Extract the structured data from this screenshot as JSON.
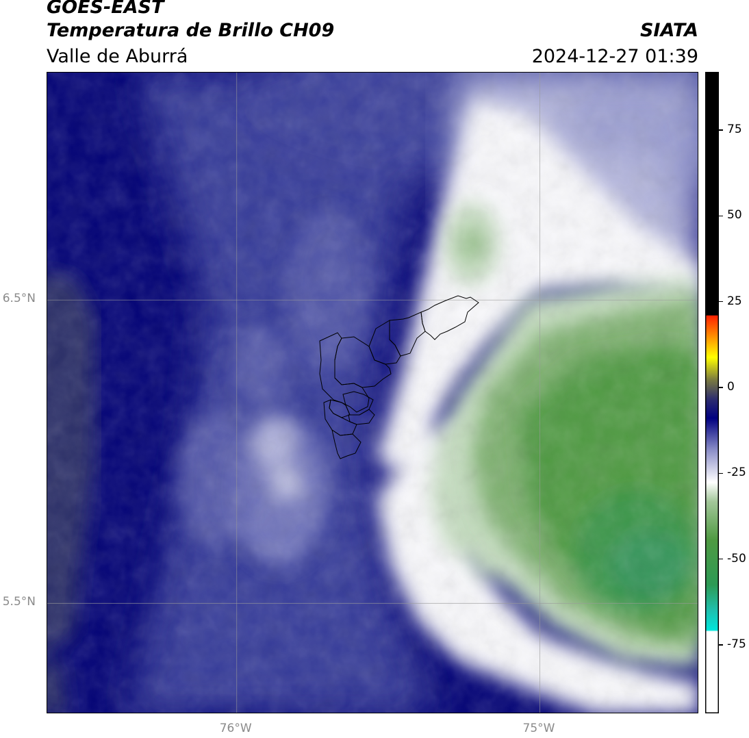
{
  "header": {
    "satellite": "GOES-EAST",
    "product": "Temperatura de Brillo CH09",
    "region": "Valle de Aburrá",
    "agency": "SIATA",
    "datetime": "2024-12-27 01:39"
  },
  "map": {
    "lon_range": [
      -76.625,
      -74.475
    ],
    "lat_range": [
      5.135,
      7.25
    ],
    "lon_ticks": [
      {
        "value": -76,
        "label": "76°W"
      },
      {
        "value": -75,
        "label": "75°W"
      }
    ],
    "lat_ticks": [
      {
        "value": 6.5,
        "label": "6.5°N"
      },
      {
        "value": 5.5,
        "label": "5.5°N"
      }
    ],
    "grid": true
  },
  "colorbar": {
    "range": [
      -95,
      92
    ],
    "ticks": [
      {
        "value": 75,
        "label": "75"
      },
      {
        "value": 50,
        "label": "50"
      },
      {
        "value": 25,
        "label": "25"
      },
      {
        "value": 0,
        "label": "0"
      },
      {
        "value": -25,
        "label": "-25"
      },
      {
        "value": -50,
        "label": "-50"
      },
      {
        "value": -75,
        "label": "-75"
      }
    ],
    "colors": [
      "#ffffff",
      "#00e6dc",
      "#2d9a55",
      "#4f9a42",
      "#a3c79a",
      "#ffffff",
      "#8c8fc8",
      "#000080",
      "#2e2e6e",
      "#7a7a40",
      "#ffff00",
      "#ff8800",
      "#ff2200",
      "#000000"
    ]
  },
  "field_colors": {
    "deep_navy": "#020276",
    "dark_slate": "#2a2f68",
    "mid_blue": "#3a3f9c",
    "light_blue": "#7c80c2",
    "pale_lavender": "#b4b6dc",
    "white": "#f8f8fb",
    "pale_green": "#c4dcbf",
    "mid_green": "#7eb06f",
    "dark_green": "#4f9a42",
    "teal_green": "#34955a"
  }
}
